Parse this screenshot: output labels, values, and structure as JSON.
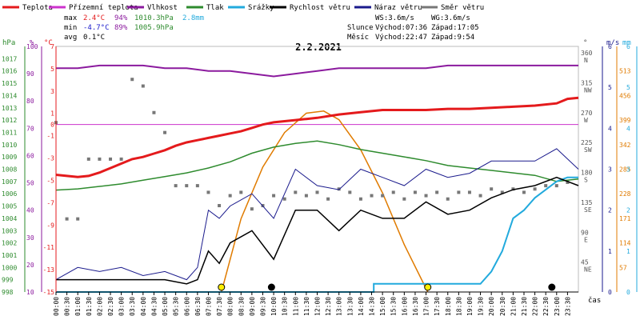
{
  "legend": [
    {
      "label": "Teplota",
      "color": "#e41a1c"
    },
    {
      "label": "Přízemní teplota",
      "color": "#cc33cc"
    },
    {
      "label": "Vlhkost",
      "color": "#8b1a9e"
    },
    {
      "label": "Tlak",
      "color": "#2e8b2e"
    },
    {
      "label": "Srážky",
      "color": "#22aadd"
    },
    {
      "label": "Rychlost větru",
      "color": "#000000"
    },
    {
      "label": "Náraz větru",
      "color": "#1a1a8c"
    },
    {
      "label": "Směr větru",
      "color": "#777777"
    }
  ],
  "stats": {
    "max_label": "max",
    "min_label": "min",
    "avg_label": "avg",
    "max_temp": "2.4°C",
    "max_hum": "94%",
    "max_press": "1010.3hPa",
    "max_rain": "2.8mm",
    "min_temp": "-4.7°C",
    "min_hum": "89%",
    "min_press": "1005.9hPa",
    "avg_temp": "0.1°C"
  },
  "wind_info": {
    "ws": "WS:3.6m/s",
    "wg": "WG:3.6m/s",
    "sun_label": "Slunce",
    "sun_rise": "Východ:07:36",
    "sun_set": "Západ:17:05",
    "moon_label": "Měsíc",
    "moon_rise": "Východ:22:47",
    "moon_set": "Západ:9:54"
  },
  "date": "2.2.2021",
  "axis_units": {
    "hpa": "hPa",
    "percent": "%",
    "celsius": "°C",
    "degree": "°",
    "ms": "m/s",
    "mm": "mm",
    "time": "čas"
  },
  "colors": {
    "temp": "#e41a1c",
    "ground": "#cc33cc",
    "hum": "#8b1a9e",
    "press": "#2e8b2e",
    "rain": "#22aadd",
    "wind": "#000000",
    "gust": "#1a1a8c",
    "dir": "#777777",
    "sun": "#e07b00",
    "hpa_axis": "#2e8b2e",
    "percent_axis": "#8b1a9e",
    "temp_axis": "#e41a1c",
    "dir_axis": "#555555",
    "ms_axis": "#1a1a8c",
    "mm_axis": "#22aadd",
    "rad_axis": "#e07b00"
  },
  "chart_data": {
    "type": "line",
    "title": "2.2.2021",
    "x_range_hours": [
      0,
      24
    ],
    "x_ticks": [
      "00:00",
      "00:30",
      "01:00",
      "01:30",
      "02:00",
      "02:30",
      "03:00",
      "03:30",
      "04:00",
      "04:30",
      "05:00",
      "05:30",
      "06:00",
      "06:30",
      "07:00",
      "07:30",
      "08:00",
      "08:30",
      "09:00",
      "09:30",
      "10:00",
      "10:30",
      "11:00",
      "11:30",
      "12:00",
      "12:30",
      "13:00",
      "13:30",
      "14:00",
      "14:30",
      "15:00",
      "15:30",
      "16:00",
      "16:30",
      "17:00",
      "17:30",
      "18:00",
      "18:30",
      "19:00",
      "19:30",
      "20:00",
      "20:30",
      "21:00",
      "21:30",
      "22:00",
      "22:30",
      "23:00",
      "23:30"
    ],
    "y_axes": {
      "hpa": {
        "range": [
          998,
          1018
        ],
        "ticks": [
          998,
          999,
          1000,
          1001,
          1002,
          1003,
          1004,
          1005,
          1006,
          1007,
          1008,
          1009,
          1010,
          1011,
          1012,
          1013,
          1014,
          1015,
          1016,
          1017
        ]
      },
      "percent": {
        "range": [
          10,
          100
        ],
        "ticks": [
          10,
          20,
          30,
          40,
          50,
          60,
          70,
          80,
          90,
          100
        ]
      },
      "celsius": {
        "range": [
          -15,
          7
        ],
        "ticks": [
          -15,
          -13,
          -11,
          -9,
          -7,
          -5,
          -3,
          -1,
          0,
          1,
          3,
          5,
          7
        ]
      },
      "direction": {
        "labels": [
          {
            "value": 45,
            "label": "45",
            "dir": "NE"
          },
          {
            "value": 90,
            "label": "90",
            "dir": "E"
          },
          {
            "value": 135,
            "label": "135",
            "dir": "SE"
          },
          {
            "value": 180,
            "label": "180",
            "dir": "S"
          },
          {
            "value": 225,
            "label": "225",
            "dir": "SW"
          },
          {
            "value": 270,
            "label": "270",
            "dir": "W"
          },
          {
            "value": 315,
            "label": "315",
            "dir": "NW"
          },
          {
            "value": 360,
            "label": "360",
            "dir": "N"
          }
        ]
      },
      "ms": {
        "range": [
          0,
          6
        ],
        "ticks": [
          0,
          1,
          2,
          3,
          4,
          5,
          6
        ]
      },
      "mm": {
        "range": [
          0,
          6
        ],
        "ticks": [
          0,
          1,
          2,
          3,
          4,
          5,
          6
        ]
      },
      "radiation": {
        "range": [
          0,
          570
        ],
        "ticks": [
          57,
          114,
          171,
          228,
          285,
          342,
          399,
          456,
          513
        ]
      }
    },
    "series": [
      {
        "name": "Teplota",
        "unit": "°C",
        "x": [
          0,
          0.5,
          1,
          1.5,
          2,
          2.5,
          3,
          3.5,
          4,
          4.5,
          5,
          5.5,
          6,
          6.5,
          7,
          7.5,
          8,
          8.5,
          9,
          9.5,
          10,
          10.5,
          11,
          11.5,
          12,
          13,
          14,
          15,
          16,
          17,
          18,
          19,
          20,
          21,
          22,
          23,
          23.5,
          24
        ],
        "y": [
          -4.5,
          -4.6,
          -4.7,
          -4.6,
          -4.3,
          -3.9,
          -3.5,
          -3.1,
          -2.9,
          -2.6,
          -2.3,
          -1.9,
          -1.6,
          -1.4,
          -1.2,
          -1.0,
          -0.8,
          -0.6,
          -0.3,
          0.0,
          0.2,
          0.3,
          0.4,
          0.5,
          0.6,
          0.9,
          1.1,
          1.3,
          1.3,
          1.3,
          1.4,
          1.4,
          1.5,
          1.6,
          1.7,
          1.9,
          2.3,
          2.4
        ]
      },
      {
        "name": "Přízemní teplota",
        "unit": "°C",
        "x": [
          0,
          24
        ],
        "y": [
          0,
          0
        ]
      },
      {
        "name": "Vlhkost",
        "unit": "%",
        "x": [
          0,
          1,
          2,
          3,
          4,
          5,
          6,
          7,
          8,
          9,
          10,
          11,
          12,
          13,
          14,
          15,
          16,
          17,
          18,
          19,
          20,
          21,
          22,
          23,
          24
        ],
        "y": [
          92,
          92,
          93,
          93,
          93,
          92,
          92,
          91,
          91,
          90,
          89,
          90,
          91,
          92,
          92,
          92,
          92,
          92,
          93,
          93,
          93,
          93,
          93,
          93,
          93
        ]
      },
      {
        "name": "Tlak",
        "unit": "hPa",
        "x": [
          0,
          1,
          2,
          3,
          4,
          5,
          6,
          7,
          8,
          9,
          10,
          11,
          12,
          13,
          14,
          15,
          16,
          17,
          18,
          19,
          20,
          21,
          22,
          23,
          24
        ],
        "y": [
          1006.3,
          1006.4,
          1006.6,
          1006.8,
          1007.1,
          1007.4,
          1007.7,
          1008.1,
          1008.6,
          1009.3,
          1009.8,
          1010.1,
          1010.3,
          1010.0,
          1009.6,
          1009.3,
          1009.0,
          1008.7,
          1008.3,
          1008.1,
          1007.9,
          1007.7,
          1007.5,
          1007.0,
          1007.2
        ]
      },
      {
        "name": "Srážky",
        "unit": "mm",
        "x": [
          0,
          14.6,
          14.6,
          19.5,
          20,
          20.5,
          21,
          21.5,
          22,
          22.5,
          23,
          23.5,
          24
        ],
        "y": [
          0,
          0,
          0.2,
          0.2,
          0.5,
          1.0,
          1.8,
          2.0,
          2.3,
          2.5,
          2.7,
          2.8,
          2.8
        ]
      },
      {
        "name": "Rychlost větru",
        "unit": "m/s",
        "x": [
          0,
          1,
          2,
          3,
          4,
          5,
          6,
          6.5,
          7,
          7.5,
          8,
          9,
          10,
          11,
          12,
          13,
          14,
          15,
          16,
          17,
          18,
          19,
          20,
          21,
          22,
          23,
          24
        ],
        "y": [
          0.3,
          0.3,
          0.3,
          0.3,
          0.3,
          0.3,
          0.2,
          0.3,
          1.0,
          0.7,
          1.2,
          1.5,
          0.8,
          2.0,
          2.0,
          1.5,
          2.0,
          1.8,
          1.8,
          2.2,
          1.9,
          2.0,
          2.3,
          2.5,
          2.6,
          2.8,
          2.6
        ]
      },
      {
        "name": "Náraz větru",
        "unit": "m/s",
        "x": [
          0,
          1,
          2,
          3,
          4,
          5,
          6,
          6.5,
          7,
          7.5,
          8,
          9,
          10,
          11,
          12,
          13,
          14,
          15,
          16,
          17,
          18,
          19,
          20,
          21,
          22,
          23,
          24
        ],
        "y": [
          0.3,
          0.6,
          0.5,
          0.6,
          0.4,
          0.5,
          0.3,
          0.6,
          2.0,
          1.8,
          2.1,
          2.4,
          1.8,
          3.0,
          2.6,
          2.5,
          3.0,
          2.8,
          2.6,
          3.0,
          2.8,
          2.9,
          3.2,
          3.2,
          3.2,
          3.5,
          3.0
        ]
      },
      {
        "name": "Směr větru",
        "unit": "°",
        "x": [
          0,
          0.5,
          1,
          1.5,
          2,
          2.5,
          3,
          3.5,
          4,
          4.5,
          5,
          5.5,
          6,
          6.5,
          7,
          7.5,
          8,
          8.5,
          9,
          9.5,
          10,
          10.5,
          11,
          11.5,
          12,
          12.5,
          13,
          13.5,
          14,
          14.5,
          15,
          15.5,
          16,
          16.5,
          17,
          17.5,
          18,
          18.5,
          19,
          19.5,
          20,
          20.5,
          21,
          21.5,
          22,
          22.5,
          23,
          23.5
        ],
        "y": [
          255,
          110,
          110,
          200,
          200,
          200,
          200,
          320,
          310,
          270,
          240,
          160,
          160,
          160,
          150,
          130,
          145,
          150,
          125,
          130,
          145,
          140,
          150,
          145,
          150,
          140,
          155,
          150,
          140,
          145,
          145,
          150,
          140,
          150,
          145,
          150,
          140,
          150,
          150,
          145,
          155,
          150,
          155,
          150,
          155,
          160,
          160,
          165
        ]
      },
      {
        "name": "Slunce",
        "unit": "W/m²",
        "x": [
          7.6,
          8.5,
          9.5,
          10.5,
          11.5,
          12.3,
          13,
          14,
          15,
          16,
          17.08
        ],
        "y": [
          0,
          170,
          290,
          370,
          415,
          420,
          400,
          330,
          230,
          110,
          0
        ]
      }
    ],
    "events": [
      {
        "time": 7.6,
        "label": "sunrise"
      },
      {
        "time": 9.9,
        "label": "moonset"
      },
      {
        "time": 17.08,
        "label": "sunset"
      },
      {
        "time": 22.78,
        "label": "moonrise"
      }
    ]
  }
}
